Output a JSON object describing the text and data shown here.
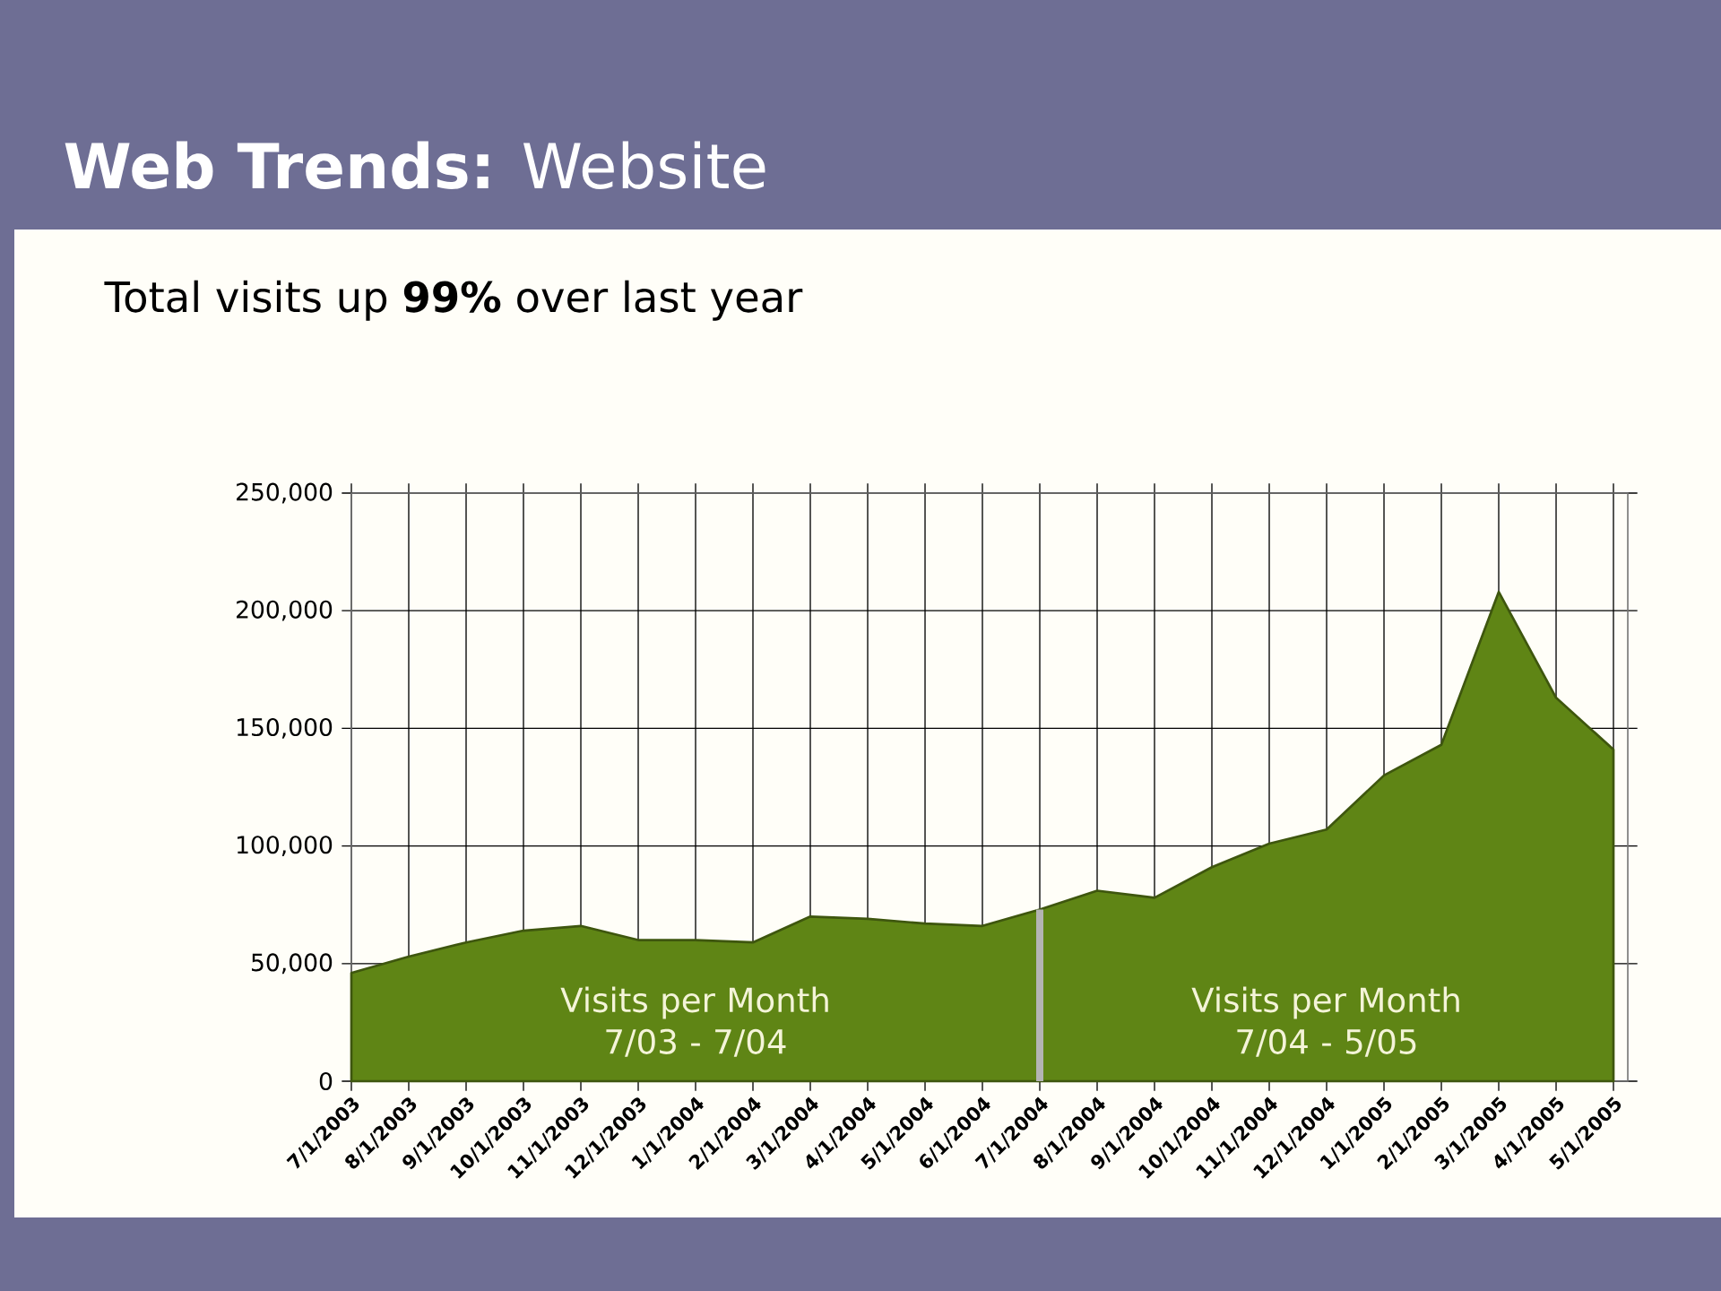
{
  "chart_data": {
    "type": "area",
    "title": "**Web Trends:** Website",
    "subtitle": "Total visits up **99%** over last year",
    "categories": [
      "7/1/2003",
      "8/1/2003",
      "9/1/2003",
      "10/1/2003",
      "11/1/2003",
      "12/1/2003",
      "1/1/2004",
      "2/1/2004",
      "3/1/2004",
      "4/1/2004",
      "5/1/2004",
      "6/1/2004",
      "7/1/2004",
      "8/1/2004",
      "9/1/2004",
      "10/1/2004",
      "11/1/2004",
      "12/1/2004",
      "1/1/2005",
      "2/1/2005",
      "3/1/2005",
      "4/1/2005",
      "5/1/2005"
    ],
    "values": [
      46000,
      53000,
      59000,
      64000,
      66000,
      60000,
      60000,
      59000,
      70000,
      69000,
      67000,
      66000,
      73000,
      81000,
      78000,
      91000,
      101000,
      107000,
      130000,
      143000,
      208000,
      163000,
      141000
    ],
    "color": "#5f8515",
    "ylim": [
      0,
      250000
    ],
    "yticks": [
      0,
      {
        "value": 50000,
        "label": "50,000"
      },
      {
        "value": 100000,
        "label": "100,000"
      },
      {
        "value": 150000,
        "label": "150,000"
      },
      {
        "value": 200000,
        "label": "200,000"
      },
      {
        "value": 250000,
        "label": "250,000"
      }
    ],
    "grid": true,
    "ref_lines": [
      {
        "axis": "x",
        "value": "7/1/2004",
        "color": "#b4b4b4"
      }
    ],
    "annotations": [
      "Visits per Month\n7/03 - 7/04",
      "Visits per Month\n7/04 - 5/05"
    ]
  }
}
